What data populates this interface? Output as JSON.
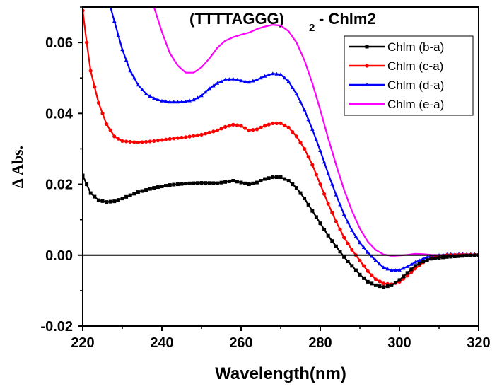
{
  "chart_data": {
    "type": "line",
    "title": "(TTTTAGGG)",
    "title_subscript": "2",
    "title_suffix": "- Chlm2",
    "xlabel": "Wavelength(nm)",
    "ylabel": "Δ Abs.",
    "xlim": [
      220,
      320
    ],
    "ylim": [
      -0.02,
      0.07
    ],
    "xticks": [
      220,
      240,
      260,
      280,
      300,
      320
    ],
    "yticks": [
      -0.02,
      0.0,
      0.02,
      0.04,
      0.06
    ],
    "ytick_labels": [
      "-0.02",
      "0.00",
      "0.02",
      "0.04",
      "0.06"
    ],
    "zero_line": true,
    "grid": false,
    "legend_position": "top-right",
    "series": [
      {
        "name": "Chlm (b-a)",
        "color": "#000000",
        "marker": "square",
        "points": [
          [
            220,
            0.0225
          ],
          [
            222,
            0.0175
          ],
          [
            224,
            0.0155
          ],
          [
            226,
            0.015
          ],
          [
            228,
            0.0152
          ],
          [
            230,
            0.016
          ],
          [
            234,
            0.0178
          ],
          [
            238,
            0.019
          ],
          [
            242,
            0.0198
          ],
          [
            246,
            0.0202
          ],
          [
            250,
            0.0204
          ],
          [
            254,
            0.0203
          ],
          [
            258,
            0.021
          ],
          [
            260,
            0.0205
          ],
          [
            262,
            0.02
          ],
          [
            264,
            0.0205
          ],
          [
            266,
            0.0215
          ],
          [
            268,
            0.022
          ],
          [
            270,
            0.022
          ],
          [
            272,
            0.021
          ],
          [
            274,
            0.019
          ],
          [
            276,
            0.016
          ],
          [
            278,
            0.0125
          ],
          [
            280,
            0.009
          ],
          [
            282,
            0.0055
          ],
          [
            284,
            0.0025
          ],
          [
            286,
            -0.0005
          ],
          [
            288,
            -0.003
          ],
          [
            290,
            -0.0055
          ],
          [
            292,
            -0.0075
          ],
          [
            294,
            -0.0085
          ],
          [
            296,
            -0.009
          ],
          [
            298,
            -0.0085
          ],
          [
            300,
            -0.007
          ],
          [
            302,
            -0.005
          ],
          [
            304,
            -0.003
          ],
          [
            306,
            -0.0018
          ],
          [
            308,
            -0.001
          ],
          [
            312,
            -0.0005
          ],
          [
            316,
            -0.0002
          ],
          [
            320,
            0.0
          ]
        ]
      },
      {
        "name": "Chlm (c-a)",
        "color": "#ff0000",
        "marker": "circle",
        "points": [
          [
            220,
            0.069
          ],
          [
            221,
            0.06
          ],
          [
            222,
            0.052
          ],
          [
            224,
            0.043
          ],
          [
            226,
            0.037
          ],
          [
            228,
            0.0335
          ],
          [
            230,
            0.0322
          ],
          [
            234,
            0.0318
          ],
          [
            238,
            0.0322
          ],
          [
            242,
            0.0328
          ],
          [
            246,
            0.0333
          ],
          [
            250,
            0.034
          ],
          [
            254,
            0.0352
          ],
          [
            256,
            0.0362
          ],
          [
            258,
            0.0368
          ],
          [
            260,
            0.0365
          ],
          [
            262,
            0.0352
          ],
          [
            264,
            0.0355
          ],
          [
            266,
            0.0365
          ],
          [
            268,
            0.0372
          ],
          [
            270,
            0.0372
          ],
          [
            272,
            0.036
          ],
          [
            274,
            0.0335
          ],
          [
            276,
            0.03
          ],
          [
            278,
            0.0255
          ],
          [
            280,
            0.02
          ],
          [
            282,
            0.0145
          ],
          [
            284,
            0.0095
          ],
          [
            286,
            0.005
          ],
          [
            288,
            0.0015
          ],
          [
            290,
            -0.0015
          ],
          [
            292,
            -0.0045
          ],
          [
            294,
            -0.0068
          ],
          [
            296,
            -0.008
          ],
          [
            298,
            -0.0082
          ],
          [
            300,
            -0.0075
          ],
          [
            302,
            -0.0058
          ],
          [
            304,
            -0.0038
          ],
          [
            306,
            -0.002
          ],
          [
            308,
            -0.0008
          ],
          [
            312,
            0.0
          ],
          [
            316,
            0.0001
          ],
          [
            320,
            0.0001
          ]
        ]
      },
      {
        "name": "Chlm (d-a)",
        "color": "#0000ff",
        "marker": "triangle",
        "points": [
          [
            227,
            0.07
          ],
          [
            228,
            0.066
          ],
          [
            230,
            0.058
          ],
          [
            232,
            0.052
          ],
          [
            234,
            0.048
          ],
          [
            236,
            0.0455
          ],
          [
            238,
            0.0442
          ],
          [
            240,
            0.0435
          ],
          [
            242,
            0.0432
          ],
          [
            244,
            0.0432
          ],
          [
            246,
            0.0433
          ],
          [
            248,
            0.0438
          ],
          [
            250,
            0.045
          ],
          [
            252,
            0.047
          ],
          [
            254,
            0.0485
          ],
          [
            256,
            0.0495
          ],
          [
            258,
            0.0497
          ],
          [
            260,
            0.0492
          ],
          [
            262,
            0.0488
          ],
          [
            264,
            0.0495
          ],
          [
            266,
            0.0505
          ],
          [
            268,
            0.0512
          ],
          [
            270,
            0.051
          ],
          [
            272,
            0.049
          ],
          [
            274,
            0.0455
          ],
          [
            276,
            0.041
          ],
          [
            278,
            0.0355
          ],
          [
            280,
            0.0295
          ],
          [
            282,
            0.023
          ],
          [
            284,
            0.017
          ],
          [
            286,
            0.0115
          ],
          [
            288,
            0.007
          ],
          [
            290,
            0.0035
          ],
          [
            292,
            0.0008
          ],
          [
            294,
            -0.0015
          ],
          [
            296,
            -0.0035
          ],
          [
            298,
            -0.0043
          ],
          [
            300,
            -0.0042
          ],
          [
            302,
            -0.0032
          ],
          [
            304,
            -0.002
          ],
          [
            306,
            -0.001
          ],
          [
            308,
            -0.0003
          ],
          [
            312,
            0.0002
          ],
          [
            316,
            0.0003
          ],
          [
            320,
            0.0002
          ]
        ]
      },
      {
        "name": "Chlm (e-a)",
        "color": "#ff00ff",
        "marker": "none",
        "points": [
          [
            238,
            0.07
          ],
          [
            240,
            0.063
          ],
          [
            242,
            0.057
          ],
          [
            244,
            0.0535
          ],
          [
            246,
            0.0515
          ],
          [
            248,
            0.0515
          ],
          [
            250,
            0.053
          ],
          [
            252,
            0.0555
          ],
          [
            254,
            0.0585
          ],
          [
            256,
            0.0605
          ],
          [
            258,
            0.0615
          ],
          [
            260,
            0.0622
          ],
          [
            262,
            0.0628
          ],
          [
            264,
            0.0638
          ],
          [
            266,
            0.0645
          ],
          [
            268,
            0.065
          ],
          [
            270,
            0.0648
          ],
          [
            272,
            0.0632
          ],
          [
            274,
            0.06
          ],
          [
            276,
            0.055
          ],
          [
            278,
            0.0485
          ],
          [
            280,
            0.041
          ],
          [
            282,
            0.033
          ],
          [
            284,
            0.0255
          ],
          [
            286,
            0.0185
          ],
          [
            288,
            0.0125
          ],
          [
            290,
            0.0075
          ],
          [
            292,
            0.0038
          ],
          [
            294,
            0.0015
          ],
          [
            296,
            0.0002
          ],
          [
            298,
            -0.0002
          ],
          [
            300,
            -0.0001
          ],
          [
            302,
            0.0001
          ],
          [
            304,
            0.0004
          ],
          [
            306,
            0.0003
          ],
          [
            308,
            0.0001
          ],
          [
            312,
            0.0
          ],
          [
            316,
            0.0001
          ],
          [
            320,
            0.0
          ]
        ]
      }
    ]
  }
}
